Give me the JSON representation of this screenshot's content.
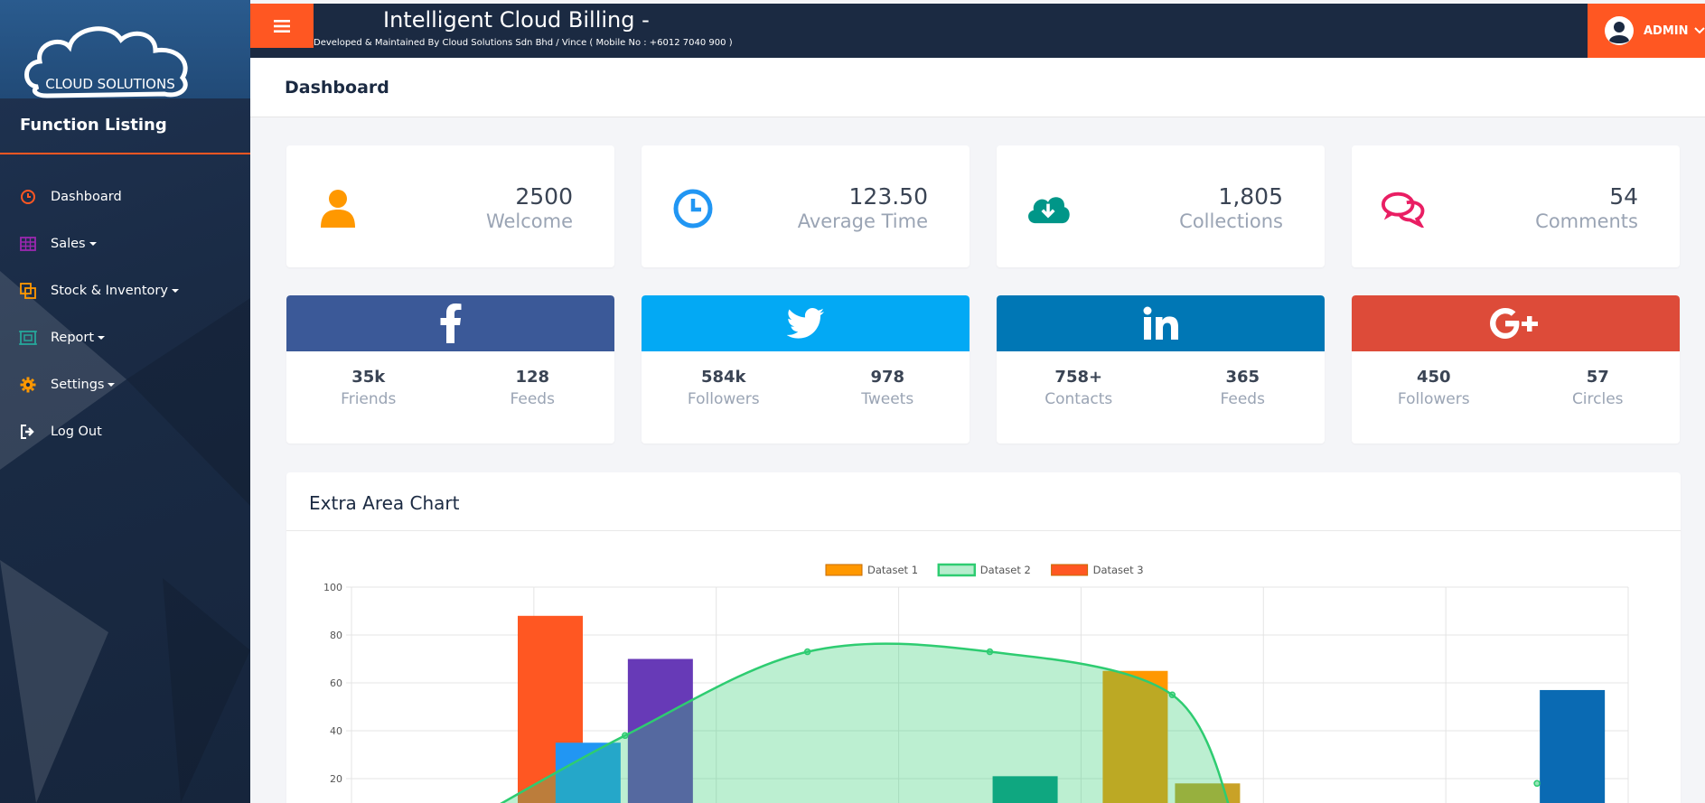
{
  "app": {
    "title": "Intelligent Cloud Billing -",
    "subtitle": "Developed & Maintained By Cloud Solutions Sdn Bhd / Vince ( Mobile No : +6012 7040 900 )",
    "logo_text": "CLOUD SOLUTIONS",
    "user_label": "ADMIN"
  },
  "sidebar": {
    "title": "Function Listing",
    "items": [
      {
        "label": "Dashboard",
        "icon": "clock-icon",
        "color": "#ff5722",
        "dropdown": false
      },
      {
        "label": "Sales",
        "icon": "table-icon",
        "color": "#9c27b0",
        "dropdown": true
      },
      {
        "label": "Stock & Inventory",
        "icon": "copy-icon",
        "color": "#ff9800",
        "dropdown": true
      },
      {
        "label": "Report",
        "icon": "report-icon",
        "color": "#26a69a",
        "dropdown": true
      },
      {
        "label": "Settings",
        "icon": "gear-icon",
        "color": "#ff9800",
        "dropdown": true
      },
      {
        "label": "Log Out",
        "icon": "logout-icon",
        "color": "#ffffff",
        "dropdown": false
      }
    ]
  },
  "page": {
    "title": "Dashboard"
  },
  "stats": [
    {
      "value": "2500",
      "label": "Welcome",
      "icon": "user-icon",
      "color": "#ff9800"
    },
    {
      "value": "123.50",
      "label": "Average Time",
      "icon": "clock-icon",
      "color": "#2196f3"
    },
    {
      "value": "1,805",
      "label": "Collections",
      "icon": "cloud-download-icon",
      "color": "#009688"
    },
    {
      "value": "54",
      "label": "Comments",
      "icon": "comments-icon",
      "color": "#e91e63"
    }
  ],
  "social": [
    {
      "network": "facebook",
      "icon": "facebook-icon",
      "color": "#3b5998",
      "left_value": "35k",
      "left_label": "Friends",
      "right_value": "128",
      "right_label": "Feeds"
    },
    {
      "network": "twitter",
      "icon": "twitter-icon",
      "color": "#03a9f4",
      "left_value": "584k",
      "left_label": "Followers",
      "right_value": "978",
      "right_label": "Tweets"
    },
    {
      "network": "linkedin",
      "icon": "linkedin-icon",
      "color": "#0077b5",
      "left_value": "758+",
      "left_label": "Contacts",
      "right_value": "365",
      "right_label": "Feeds"
    },
    {
      "network": "googleplus",
      "icon": "google-plus-icon",
      "color": "#dd4b39",
      "left_value": "450",
      "left_label": "Followers",
      "right_value": "57",
      "right_label": "Circles"
    }
  ],
  "chart": {
    "title": "Extra Area Chart"
  },
  "chart_data": {
    "type": "bar",
    "ylim": [
      0,
      100
    ],
    "y_ticks": [
      "100",
      "80",
      "60",
      "40",
      "20"
    ],
    "grid": true,
    "legend_position": "top",
    "legend": [
      {
        "name": "Dataset 1",
        "color": "#ff9800",
        "style": "box"
      },
      {
        "name": "Dataset 2",
        "color": "#2ecc71",
        "style": "area"
      },
      {
        "name": "Dataset 3",
        "color": "#ff5722",
        "style": "box"
      }
    ],
    "bars": [
      {
        "category_index": 0,
        "slot": 2,
        "value": 88,
        "color": "#ff5722"
      },
      {
        "category_index": 1,
        "slot": 0,
        "value": 35,
        "color": "#2196f3"
      },
      {
        "category_index": 1,
        "slot": 1,
        "value": 70,
        "color": "#673ab7"
      },
      {
        "category_index": 3,
        "slot": 1,
        "value": 21,
        "color": "#009688"
      },
      {
        "category_index": 4,
        "slot": 0,
        "value": 65,
        "color": "#ff9800"
      },
      {
        "category_index": 4,
        "slot": 1,
        "value": 18,
        "color": "#c9a227"
      },
      {
        "category_index": 6,
        "slot": 1,
        "value": 57,
        "color": "#0a6ab3"
      }
    ],
    "area_series": {
      "name": "Dataset 2",
      "points": [
        {
          "x": 0.6,
          "y": 0
        },
        {
          "x": 1.5,
          "y": 38
        },
        {
          "x": 2.5,
          "y": 73
        },
        {
          "x": 3.5,
          "y": 73
        },
        {
          "x": 4.5,
          "y": 55
        },
        {
          "x": 4.85,
          "y": 0
        }
      ],
      "marker_points": [
        {
          "x": 1.5,
          "y": 38
        },
        {
          "x": 2.5,
          "y": 73
        },
        {
          "x": 3.5,
          "y": 73
        },
        {
          "x": 4.5,
          "y": 55
        },
        {
          "x": 6.5,
          "y": 18
        }
      ]
    }
  }
}
